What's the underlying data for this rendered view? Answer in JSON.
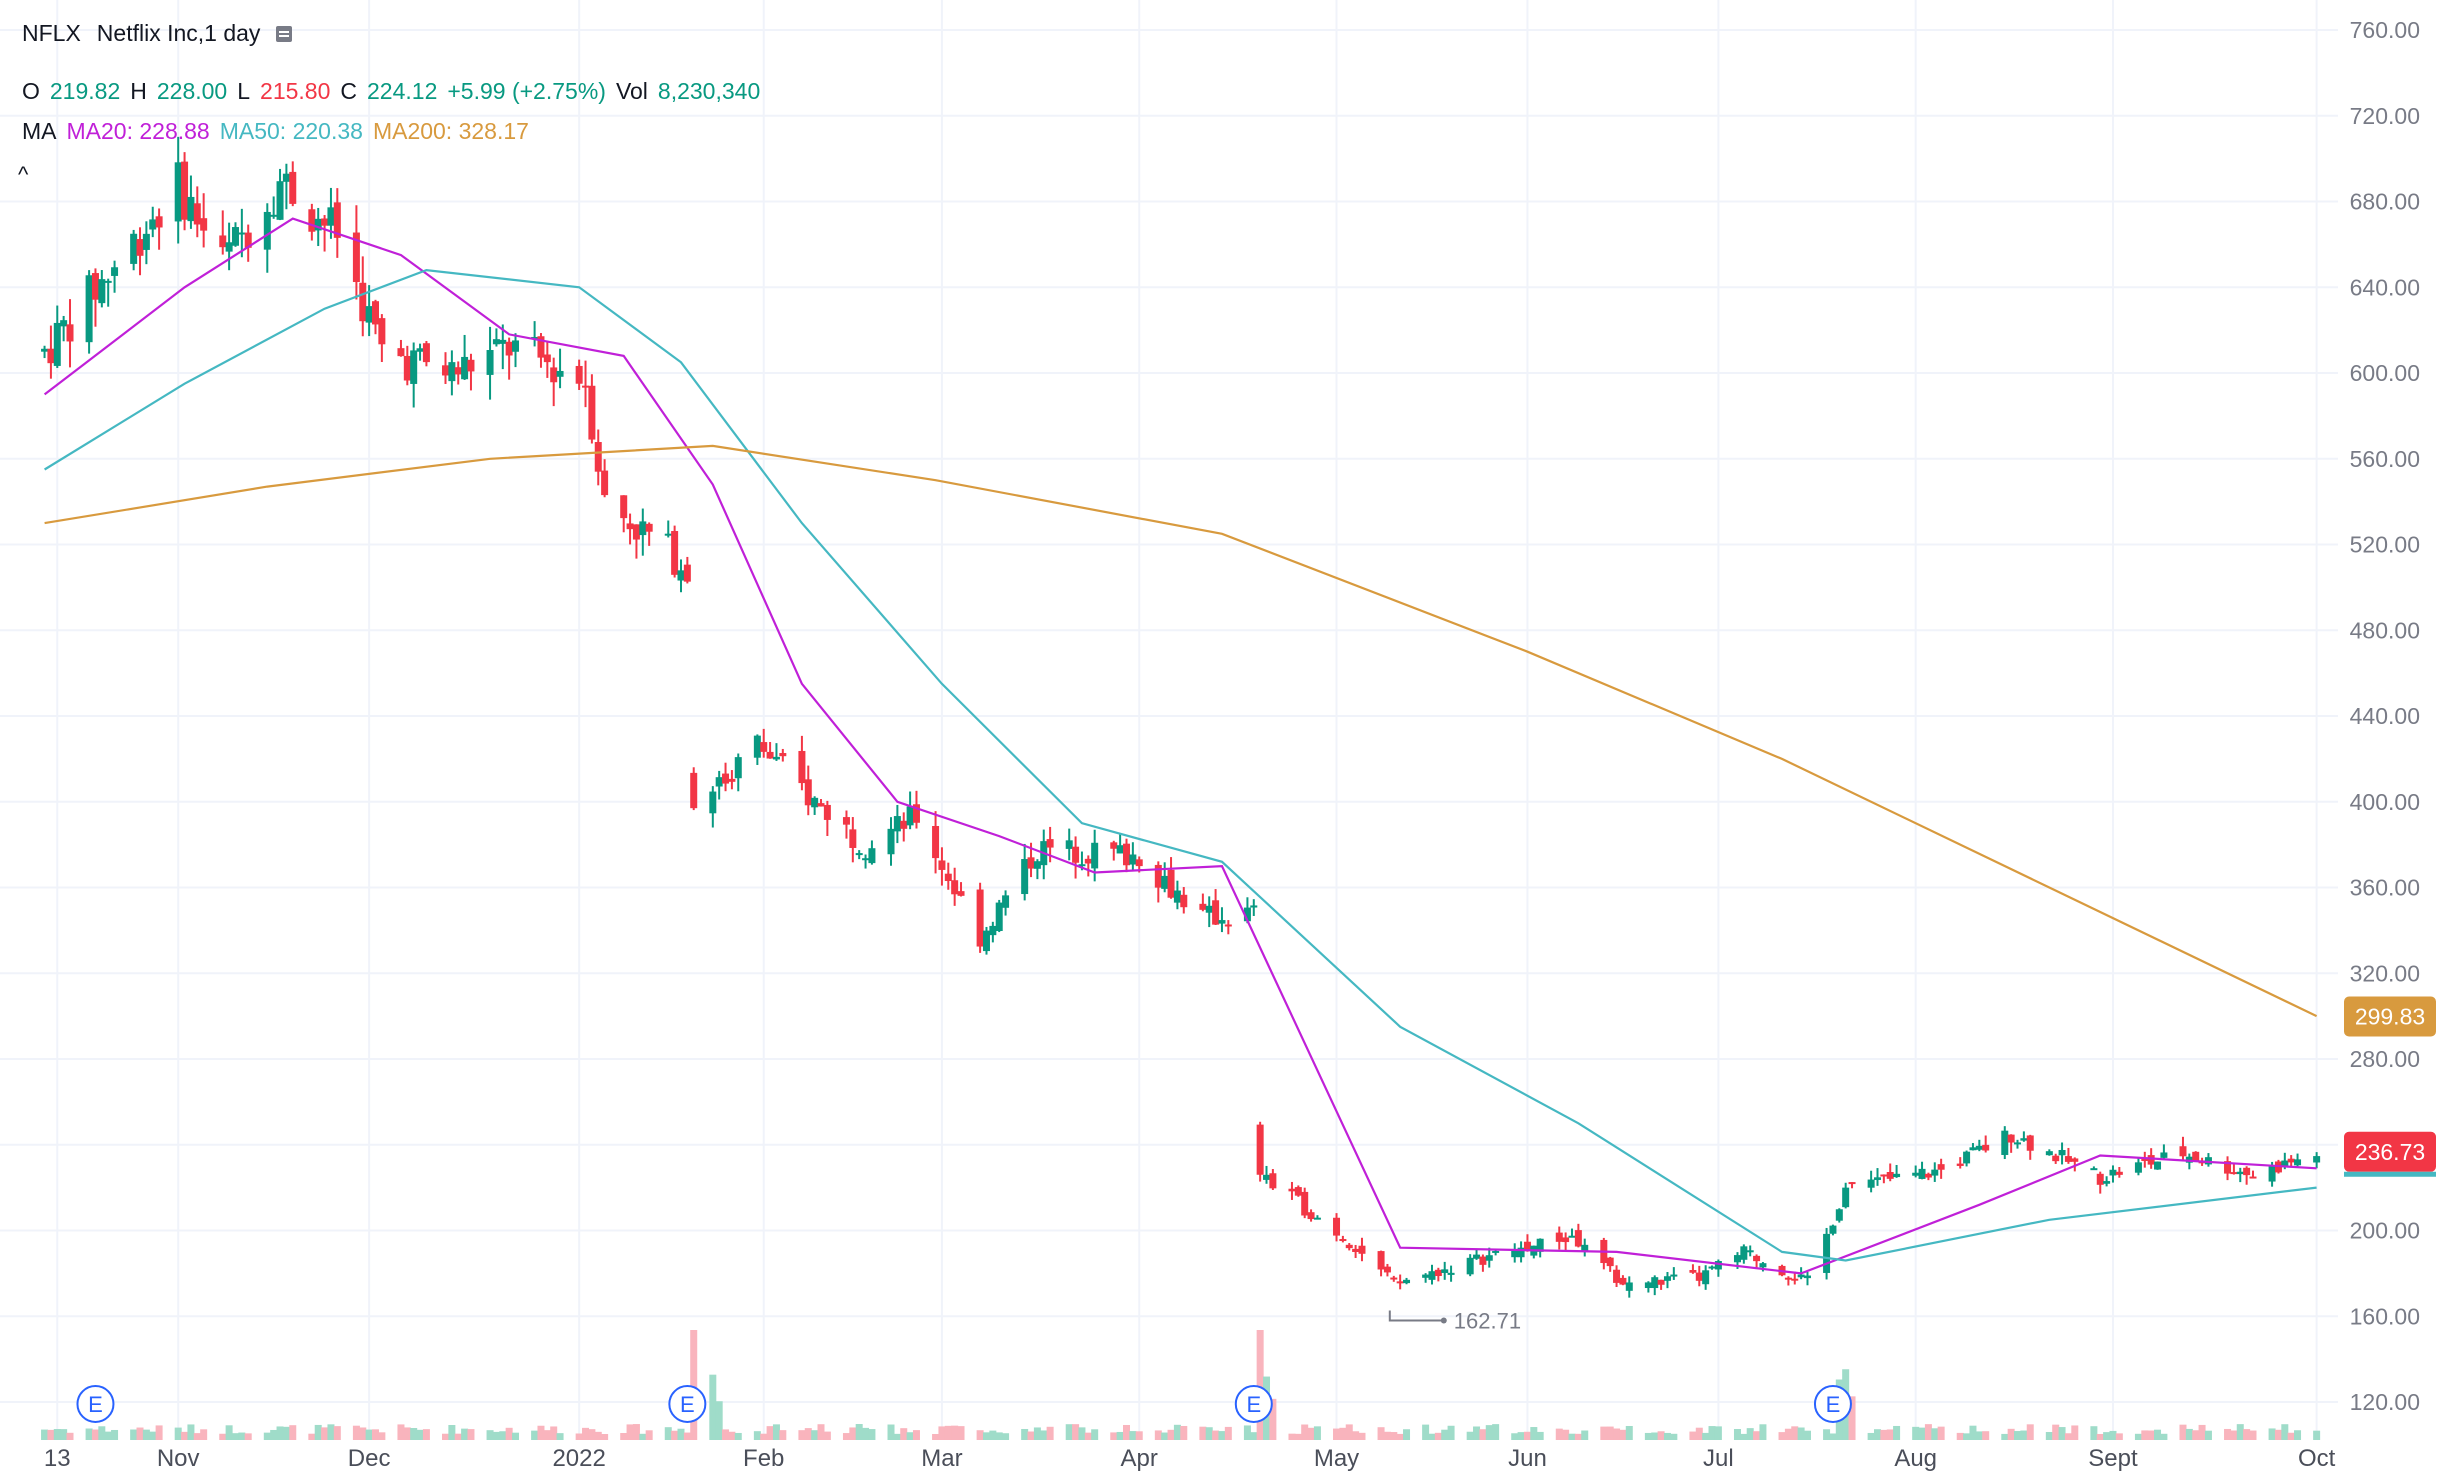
{
  "header": {
    "symbol": "NFLX",
    "description": "Netflix Inc,1 day",
    "menu_icon": "legend-menu-icon",
    "ohlc": {
      "o_label": "O",
      "o_value": "219.82",
      "h_label": "H",
      "h_value": "228.00",
      "l_label": "L",
      "l_value": "215.80",
      "c_label": "C",
      "c_value": "224.12",
      "change": "+5.99 (+2.75%)",
      "vol_label": "Vol",
      "vol_value": "8,230,340"
    },
    "ma": {
      "label": "MA",
      "ma20": "MA20: 228.88",
      "ma50": "MA50: 220.38",
      "ma200": "MA200: 328.17"
    },
    "collapse_glyph": "^"
  },
  "colors": {
    "up": "#089981",
    "down": "#f23645",
    "ma20": "#c020d8",
    "ma50": "#45b8c2",
    "ma200": "#d89a3e",
    "grid": "#f0f3fa",
    "axis_text": "#787b86"
  },
  "chart_data": {
    "type": "candlestick",
    "symbol": "NFLX",
    "interval": "1 day",
    "y_axis_labels": [
      "760.00",
      "720.00",
      "680.00",
      "640.00",
      "600.00",
      "560.00",
      "520.00",
      "480.00",
      "440.00",
      "400.00",
      "360.00",
      "320.00",
      "280.00",
      "240.00",
      "200.00",
      "160.00",
      "120.00"
    ],
    "ylim": [
      120,
      760
    ],
    "x_axis_labels": [
      "13",
      "Nov",
      "Dec",
      "2022",
      "Feb",
      "Mar",
      "Apr",
      "May",
      "Jun",
      "Jul",
      "Aug",
      "Sept",
      "Oct"
    ],
    "price_tags": [
      {
        "name": "MA200",
        "value": "299.83",
        "color": "#d89a3e"
      },
      {
        "name": "Last",
        "value": "236.73",
        "color": "#f23645"
      }
    ],
    "low_marker": "162.71",
    "earnings_label": "E",
    "earnings_markers": [
      "Oct 2021",
      "Jan 2022",
      "Apr 2022",
      "Jul 2022"
    ],
    "price_anchors": [
      {
        "date": "2021-10-11",
        "close": 610
      },
      {
        "date": "2021-10-22",
        "close": 650
      },
      {
        "date": "2021-11-01",
        "close": 688
      },
      {
        "date": "2021-11-08",
        "close": 652
      },
      {
        "date": "2021-11-17",
        "close": 690
      },
      {
        "date": "2021-11-26",
        "close": 665
      },
      {
        "date": "2021-12-03",
        "close": 610
      },
      {
        "date": "2021-12-14",
        "close": 600
      },
      {
        "date": "2021-12-23",
        "close": 612
      },
      {
        "date": "2022-01-04",
        "close": 597
      },
      {
        "date": "2022-01-07",
        "close": 540
      },
      {
        "date": "2022-01-20",
        "close": 510
      },
      {
        "date": "2022-01-21",
        "close": 397
      },
      {
        "date": "2022-01-31",
        "close": 427
      },
      {
        "date": "2022-02-09",
        "close": 400
      },
      {
        "date": "2022-02-17",
        "close": 380
      },
      {
        "date": "2022-02-25",
        "close": 393
      },
      {
        "date": "2022-03-07",
        "close": 337
      },
      {
        "date": "2022-03-16",
        "close": 378
      },
      {
        "date": "2022-04-01",
        "close": 375
      },
      {
        "date": "2022-04-11",
        "close": 346
      },
      {
        "date": "2022-04-19",
        "close": 348
      },
      {
        "date": "2022-04-20",
        "close": 226
      },
      {
        "date": "2022-05-04",
        "close": 195
      },
      {
        "date": "2022-05-11",
        "close": 175
      },
      {
        "date": "2022-05-26",
        "close": 188
      },
      {
        "date": "2022-06-08",
        "close": 197
      },
      {
        "date": "2022-06-16",
        "close": 175
      },
      {
        "date": "2022-06-28",
        "close": 178
      },
      {
        "date": "2022-07-05",
        "close": 190
      },
      {
        "date": "2022-07-15",
        "close": 176
      },
      {
        "date": "2022-07-21",
        "close": 220
      },
      {
        "date": "2022-08-05",
        "close": 228
      },
      {
        "date": "2022-08-16",
        "close": 245
      },
      {
        "date": "2022-08-30",
        "close": 225
      },
      {
        "date": "2022-09-12",
        "close": 236
      },
      {
        "date": "2022-09-23",
        "close": 226
      },
      {
        "date": "2022-10-03",
        "close": 236
      }
    ],
    "ma_series": [
      {
        "name": "MA20",
        "color": "#c020d8",
        "values": [
          {
            "date": "2021-10-11",
            "value": 590
          },
          {
            "date": "2021-11-02",
            "value": 640
          },
          {
            "date": "2021-11-19",
            "value": 672
          },
          {
            "date": "2021-12-06",
            "value": 655
          },
          {
            "date": "2021-12-23",
            "value": 618
          },
          {
            "date": "2022-01-10",
            "value": 608
          },
          {
            "date": "2022-01-24",
            "value": 548
          },
          {
            "date": "2022-02-07",
            "value": 455
          },
          {
            "date": "2022-02-22",
            "value": 400
          },
          {
            "date": "2022-03-10",
            "value": 384
          },
          {
            "date": "2022-03-25",
            "value": 367
          },
          {
            "date": "2022-04-14",
            "value": 370
          },
          {
            "date": "2022-05-12",
            "value": 192
          },
          {
            "date": "2022-06-15",
            "value": 190
          },
          {
            "date": "2022-07-14",
            "value": 180
          },
          {
            "date": "2022-08-11",
            "value": 212
          },
          {
            "date": "2022-08-30",
            "value": 235
          },
          {
            "date": "2022-10-03",
            "value": 229
          }
        ]
      },
      {
        "name": "MA50",
        "color": "#45b8c2",
        "values": [
          {
            "date": "2021-10-11",
            "value": 555
          },
          {
            "date": "2021-11-02",
            "value": 595
          },
          {
            "date": "2021-11-24",
            "value": 630
          },
          {
            "date": "2021-12-10",
            "value": 648
          },
          {
            "date": "2022-01-03",
            "value": 640
          },
          {
            "date": "2022-01-19",
            "value": 605
          },
          {
            "date": "2022-02-07",
            "value": 530
          },
          {
            "date": "2022-03-01",
            "value": 455
          },
          {
            "date": "2022-03-23",
            "value": 390
          },
          {
            "date": "2022-04-14",
            "value": 372
          },
          {
            "date": "2022-05-12",
            "value": 295
          },
          {
            "date": "2022-06-09",
            "value": 250
          },
          {
            "date": "2022-07-11",
            "value": 190
          },
          {
            "date": "2022-07-21",
            "value": 186
          },
          {
            "date": "2022-08-22",
            "value": 205
          },
          {
            "date": "2022-10-03",
            "value": 220
          }
        ]
      },
      {
        "name": "MA200",
        "color": "#d89a3e",
        "values": [
          {
            "date": "2021-10-11",
            "value": 530
          },
          {
            "date": "2021-11-15",
            "value": 547
          },
          {
            "date": "2021-12-20",
            "value": 560
          },
          {
            "date": "2022-01-24",
            "value": 566
          },
          {
            "date": "2022-02-28",
            "value": 550
          },
          {
            "date": "2022-04-14",
            "value": 525
          },
          {
            "date": "2022-06-01",
            "value": 470
          },
          {
            "date": "2022-07-11",
            "value": 420
          },
          {
            "date": "2022-08-22",
            "value": 360
          },
          {
            "date": "2022-10-03",
            "value": 300
          }
        ]
      }
    ],
    "volume_spikes": [
      {
        "date": "2022-01-21",
        "relative": 1.0
      },
      {
        "date": "2022-04-20",
        "relative": 1.0
      },
      {
        "date": "2022-07-20",
        "relative": 0.55
      }
    ],
    "grid": true,
    "y_axis_position": "right"
  }
}
